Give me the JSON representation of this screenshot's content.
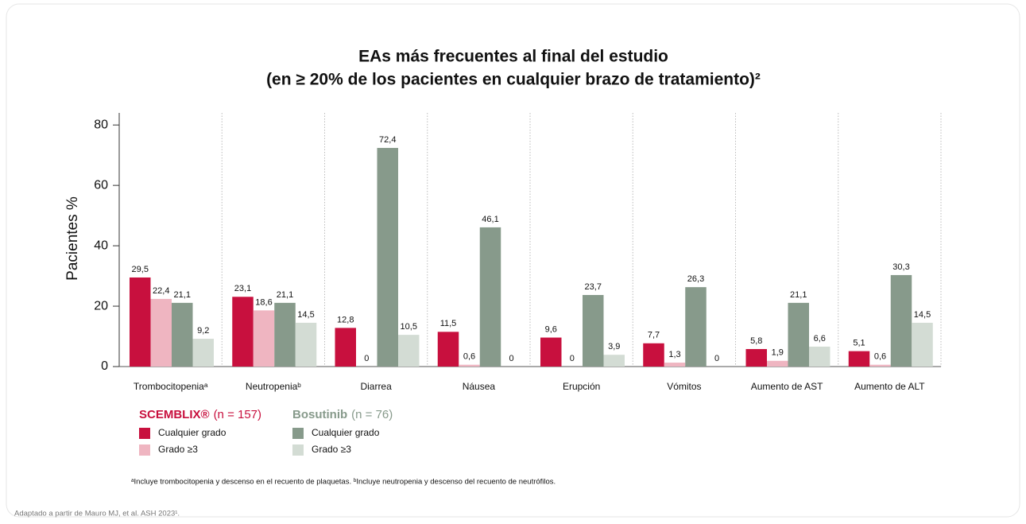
{
  "chart_data": {
    "type": "bar",
    "title": "EAs más frecuentes al final del estudio",
    "subtitle": "(en ≥ 20% de los pacientes en cualquier brazo de tratamiento)²",
    "y_label": "Pacientes %",
    "categories": [
      "Trombocitopeniaᵃ",
      "Neutropeniaᵇ",
      "Diarrea",
      "Náusea",
      "Erupción",
      "Vómitos",
      "Aumento de AST",
      "Aumento de ALT"
    ],
    "series": [
      {
        "name": "Cualquier grado",
        "color": "#c8103e",
        "values": [
          29.5,
          23.1,
          12.8,
          11.5,
          9.6,
          7.7,
          5.8,
          5.1
        ],
        "value_labels": [
          "29,5",
          "23,1",
          "12,8",
          "11,5",
          "9,6",
          "7,7",
          "5,8",
          "5,1"
        ]
      },
      {
        "name": "Grado ≥3",
        "color": "#efb5c1",
        "values": [
          22.4,
          18.6,
          0,
          0.6,
          0,
          1.3,
          1.9,
          0.6
        ],
        "value_labels": [
          "22,4",
          "18,6",
          "0",
          "0,6",
          "0",
          "1,3",
          "1,9",
          "0,6"
        ]
      },
      {
        "name": "Cualquier grado",
        "color": "#879a8b",
        "values": [
          21.1,
          21.1,
          72.4,
          46.1,
          23.7,
          26.3,
          21.1,
          30.3
        ],
        "value_labels": [
          "21,1",
          "21,1",
          "72,4",
          "46,1",
          "23,7",
          "26,3",
          "21,1",
          "30,3"
        ]
      },
      {
        "name": "Grado ≥3",
        "color": "#d3dcd4",
        "values": [
          9.2,
          14.5,
          10.5,
          0,
          3.9,
          0,
          6.6,
          14.5
        ],
        "value_labels": [
          "9,2",
          "14,5",
          "10,5",
          "0",
          "3,9",
          "0",
          "6,6",
          "14,5"
        ]
      }
    ],
    "legend_groups": [
      {
        "name": "SCEMBLIX®",
        "n": "(n = 157)"
      },
      {
        "name": "Bosutinib",
        "n": "(n = 76)"
      }
    ],
    "ylim": [
      0,
      84
    ],
    "yticks": [
      0,
      20,
      40,
      60,
      80
    ],
    "footnote": "ᵃIncluye trombocitopenia y descenso en el recuento de plaquetas. ᵇIncluye neutropenia y descenso del recuento de neutrófilos.",
    "source": "Adaptado a partir de Mauro MJ, et al. ASH 2023¹."
  }
}
